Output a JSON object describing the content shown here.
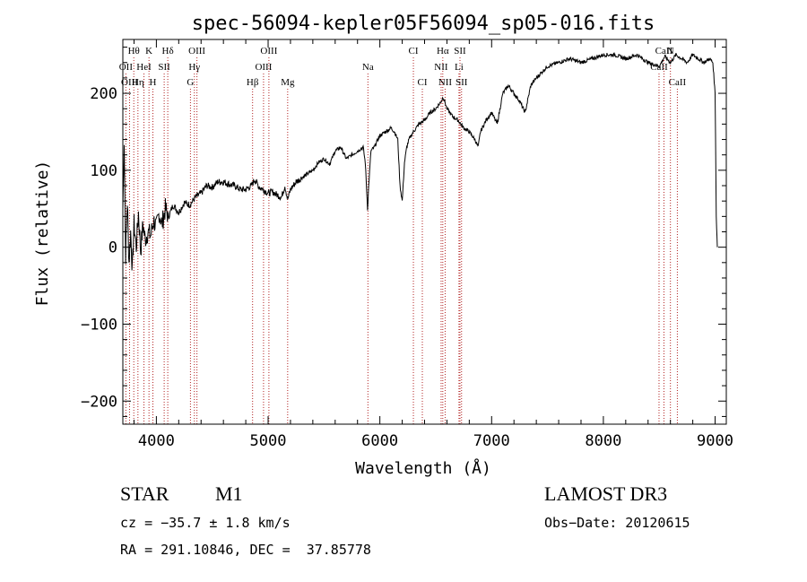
{
  "chart_data": {
    "type": "line",
    "title": "spec-56094-kepler05F56094_sp05-016.fits",
    "xlabel": "Wavelength (Å)",
    "ylabel": "Flux (relative)",
    "xlim": [
      3700,
      9100
    ],
    "ylim": [
      -230,
      270
    ],
    "x_ticks": [
      4000,
      5000,
      6000,
      7000,
      8000,
      9000
    ],
    "y_ticks": [
      -200,
      -100,
      0,
      100,
      200
    ],
    "x_tick_labels": [
      "4000",
      "5000",
      "6000",
      "7000",
      "8000",
      "9000"
    ],
    "y_tick_labels": [
      "−200",
      "−100",
      "0",
      "100",
      "200"
    ],
    "series": [
      {
        "name": "spectrum",
        "x": [
          3700,
          3712,
          3725,
          3740,
          3755,
          3770,
          3785,
          3800,
          3820,
          3840,
          3860,
          3880,
          3900,
          3925,
          3950,
          3975,
          4000,
          4025,
          4050,
          4080,
          4110,
          4150,
          4200,
          4250,
          4300,
          4350,
          4400,
          4450,
          4500,
          4550,
          4600,
          4650,
          4700,
          4750,
          4800,
          4850,
          4880,
          4920,
          4960,
          5000,
          5040,
          5080,
          5120,
          5150,
          5175,
          5200,
          5250,
          5300,
          5350,
          5400,
          5450,
          5500,
          5550,
          5600,
          5650,
          5700,
          5750,
          5800,
          5850,
          5870,
          5890,
          5900,
          5920,
          5950,
          6000,
          6050,
          6100,
          6130,
          6160,
          6180,
          6200,
          6220,
          6240,
          6260,
          6300,
          6350,
          6400,
          6450,
          6500,
          6550,
          6565,
          6580,
          6600,
          6650,
          6700,
          6750,
          6800,
          6850,
          6880,
          6900,
          6950,
          7000,
          7050,
          7100,
          7150,
          7200,
          7250,
          7300,
          7350,
          7400,
          7500,
          7600,
          7700,
          7800,
          7900,
          8000,
          8100,
          8200,
          8300,
          8400,
          8500,
          8550,
          8600,
          8650,
          8700,
          8750,
          8800,
          8850,
          8900,
          8950,
          8980,
          9000,
          9010,
          9020
        ],
        "values": [
          50,
          140,
          -10,
          60,
          -20,
          20,
          -30,
          30,
          0,
          45,
          -5,
          30,
          10,
          20,
          15,
          35,
          25,
          45,
          30,
          50,
          40,
          55,
          45,
          58,
          55,
          65,
          70,
          80,
          78,
          85,
          85,
          82,
          80,
          75,
          75,
          80,
          88,
          78,
          75,
          70,
          72,
          68,
          65,
          80,
          62,
          75,
          85,
          90,
          95,
          100,
          110,
          115,
          108,
          125,
          130,
          115,
          120,
          125,
          130,
          110,
          50,
          80,
          125,
          130,
          145,
          150,
          155,
          150,
          140,
          80,
          60,
          110,
          130,
          140,
          150,
          160,
          165,
          175,
          180,
          190,
          195,
          190,
          180,
          170,
          165,
          155,
          150,
          140,
          130,
          150,
          165,
          175,
          160,
          200,
          210,
          200,
          190,
          175,
          210,
          220,
          235,
          240,
          245,
          240,
          245,
          250,
          250,
          245,
          250,
          240,
          235,
          248,
          240,
          250,
          245,
          240,
          250,
          245,
          240,
          245,
          240,
          200,
          40,
          0
        ]
      }
    ],
    "line_markers": [
      {
        "label": "Hθ",
        "x": 3798,
        "row": 0
      },
      {
        "label": "K",
        "x": 3934,
        "row": 0
      },
      {
        "label": "Hδ",
        "x": 4102,
        "row": 0
      },
      {
        "label": "OIII",
        "x": 4363,
        "row": 0
      },
      {
        "label": "OIII",
        "x": 5007,
        "row": 0
      },
      {
        "label": "CI",
        "x": 6300,
        "row": 0
      },
      {
        "label": "Hα",
        "x": 6563,
        "row": 0
      },
      {
        "label": "SII",
        "x": 6717,
        "row": 0
      },
      {
        "label": "CaII",
        "x": 8542,
        "row": 0
      },
      {
        "label": "OII",
        "x": 3727,
        "row": 1
      },
      {
        "label": "HeI",
        "x": 3889,
        "row": 1
      },
      {
        "label": "SII",
        "x": 4070,
        "row": 1
      },
      {
        "label": "Hγ",
        "x": 4340,
        "row": 1
      },
      {
        "label": "OIII",
        "x": 4959,
        "row": 1
      },
      {
        "label": "Na",
        "x": 5893,
        "row": 1
      },
      {
        "label": "NII",
        "x": 6548,
        "row": 1
      },
      {
        "label": "Li",
        "x": 6708,
        "row": 1
      },
      {
        "label": "CaII",
        "x": 8498,
        "row": 1
      },
      {
        "label": "OIII",
        "x": 3760,
        "row": 2
      },
      {
        "label": "Hη",
        "x": 3835,
        "row": 2
      },
      {
        "label": "H",
        "x": 3969,
        "row": 2
      },
      {
        "label": "G",
        "x": 4305,
        "row": 2
      },
      {
        "label": "Hβ",
        "x": 4861,
        "row": 2
      },
      {
        "label": "Mg",
        "x": 5175,
        "row": 2
      },
      {
        "label": "CI",
        "x": 6380,
        "row": 2
      },
      {
        "label": "NII",
        "x": 6584,
        "row": 2
      },
      {
        "label": "SII",
        "x": 6731,
        "row": 2
      },
      {
        "label": "CaII",
        "x": 8662,
        "row": 2
      },
      {
        "label": "N",
        "x": 8600,
        "row": 0
      }
    ]
  },
  "info": {
    "object_class": "STAR",
    "subclass": "M1",
    "survey": "LAMOST DR3",
    "redshift": "cz = −35.7 ± 1.8 km/s",
    "obs_date": "Obs−Date: 20120615",
    "coords": "RA = 291.10846, DEC =  37.85778"
  },
  "colors": {
    "axis": "#000000",
    "spectrum": "#000000",
    "line_marker": "#b22222",
    "background": "#ffffff"
  }
}
